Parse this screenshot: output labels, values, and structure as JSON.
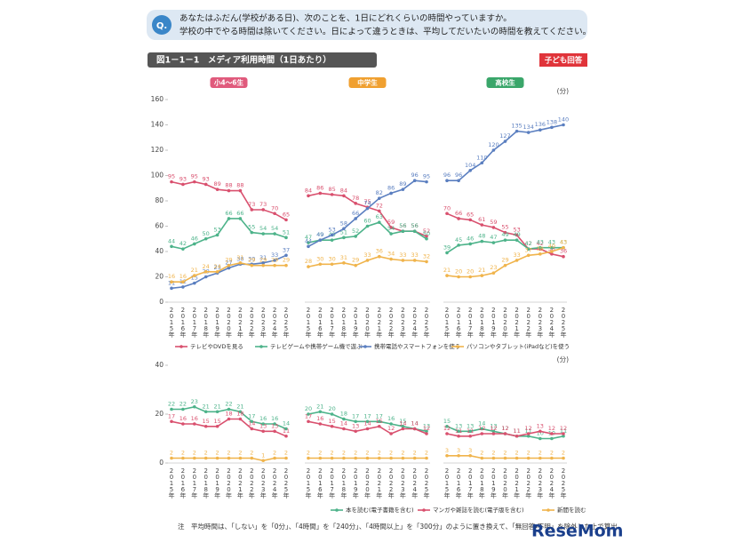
{
  "question": {
    "label": "Q.",
    "lines": [
      "あなたはふだん(学校がある日)、次のことを、1日にどれくらいの時間やっていますか。",
      "学校の中でやる時間は除いてください。日によって違うときは、平均してだいたいの時間を教えてください。"
    ]
  },
  "figure_title": "図1－1－1　メディア利用時間（1日あたり）",
  "badge": "子ども回答",
  "chart_data": [
    {
      "type": "line",
      "groups": [
        "小4～6生",
        "中学生",
        "高校生"
      ],
      "categories": [
        "2015年",
        "2016年",
        "2017年",
        "2018年",
        "2019年",
        "2020年",
        "2021年",
        "2022年",
        "2023年",
        "2024年",
        "2025年"
      ],
      "y_unit": "(分)",
      "ylim": [
        0,
        160
      ],
      "yticks": [
        0,
        20,
        40,
        60,
        80,
        100,
        120,
        140,
        160
      ],
      "grid": false,
      "series": [
        {
          "name": "テレビやDVDを見る",
          "color": "#d9506e",
          "values": [
            [
              95,
              93,
              95,
              93,
              89,
              88,
              88,
              73,
              73,
              70,
              65
            ],
            [
              84,
              86,
              85,
              84,
              78,
              75,
              72,
              59,
              56,
              56,
              52
            ],
            [
              70,
              66,
              65,
              61,
              59,
              55,
              53,
              42,
              42,
              38,
              36
            ]
          ]
        },
        {
          "name": "テレビゲームや携帯ゲーム機で遊ぶ",
          "color": "#4db38a",
          "values": [
            [
              44,
              42,
              46,
              50,
              53,
              66,
              66,
              55,
              54,
              54,
              51
            ],
            [
              47,
              49,
              49,
              51,
              52,
              60,
              63,
              54,
              56,
              56,
              50
            ],
            [
              39,
              45,
              46,
              48,
              47,
              49,
              49,
              42,
              43,
              43,
              43
            ]
          ]
        },
        {
          "name": "携帯電話やスマートフォンを使う",
          "color": "#5b7fc0",
          "values": [
            [
              11,
              12,
              15,
              20,
              23,
              27,
              30,
              30,
              31,
              33,
              37
            ],
            [
              44,
              49,
              53,
              58,
              66,
              74,
              82,
              86,
              89,
              96,
              95
            ],
            [
              96,
              96,
              104,
              110,
              120,
              127,
              135,
              134,
              136,
              138,
              140
            ]
          ]
        },
        {
          "name": "パソコンやタブレット(iPadなど)を使う",
          "color": "#f0b44c",
          "values": [
            [
              16,
              16,
              21,
              24,
              24,
              29,
              31,
              29,
              29,
              29,
              29
            ],
            [
              28,
              30,
              30,
              31,
              29,
              33,
              36,
              34,
              33,
              33,
              32
            ],
            [
              21,
              20,
              20,
              21,
              23,
              29,
              33,
              37,
              38,
              40,
              43
            ]
          ]
        }
      ]
    },
    {
      "type": "line",
      "categories": [
        "2015年",
        "2016年",
        "2017年",
        "2018年",
        "2019年",
        "2020年",
        "2021年",
        "2022年",
        "2023年",
        "2024年",
        "2025年"
      ],
      "y_unit": "(分)",
      "ylim": [
        0,
        40
      ],
      "yticks": [
        0,
        20,
        40
      ],
      "grid": false,
      "series": [
        {
          "name": "本を読む(電子書籍を含む)",
          "color": "#4db38a",
          "values": [
            [
              22,
              22,
              23,
              21,
              21,
              22,
              21,
              17,
              16,
              16,
              14
            ],
            [
              20,
              21,
              20,
              18,
              17,
              17,
              17,
              16,
              15,
              14,
              13
            ],
            [
              15,
              13,
              13,
              14,
              13,
              12,
              11,
              11,
              10,
              10,
              11
            ]
          ]
        },
        {
          "name": "マンガや雑誌を読む(電子版を含む)",
          "color": "#d9506e",
          "values": [
            [
              17,
              16,
              16,
              15,
              15,
              18,
              18,
              14,
              13,
              13,
              11
            ],
            [
              17,
              16,
              15,
              14,
              13,
              14,
              15,
              12,
              14,
              14,
              12
            ],
            [
              12,
              11,
              11,
              12,
              12,
              12,
              11,
              12,
              13,
              12,
              12
            ]
          ]
        },
        {
          "name": "新聞を読む",
          "color": "#f0b44c",
          "values": [
            [
              2,
              2,
              2,
              2,
              2,
              2,
              2,
              2,
              1,
              2,
              2
            ],
            [
              2,
              2,
              2,
              2,
              2,
              2,
              2,
              2,
              2,
              2,
              2
            ],
            [
              3,
              3,
              3,
              2,
              2,
              2,
              2,
              2,
              2,
              2,
              2
            ]
          ]
        }
      ]
    }
  ],
  "note": "注　平均時間は、「しない」を「0分」、「4時間」を「240分」、「4時間以上」を「300分」のように置き換えて、「無回答・不明」を除外した上で算出",
  "watermark": "ReseMom"
}
